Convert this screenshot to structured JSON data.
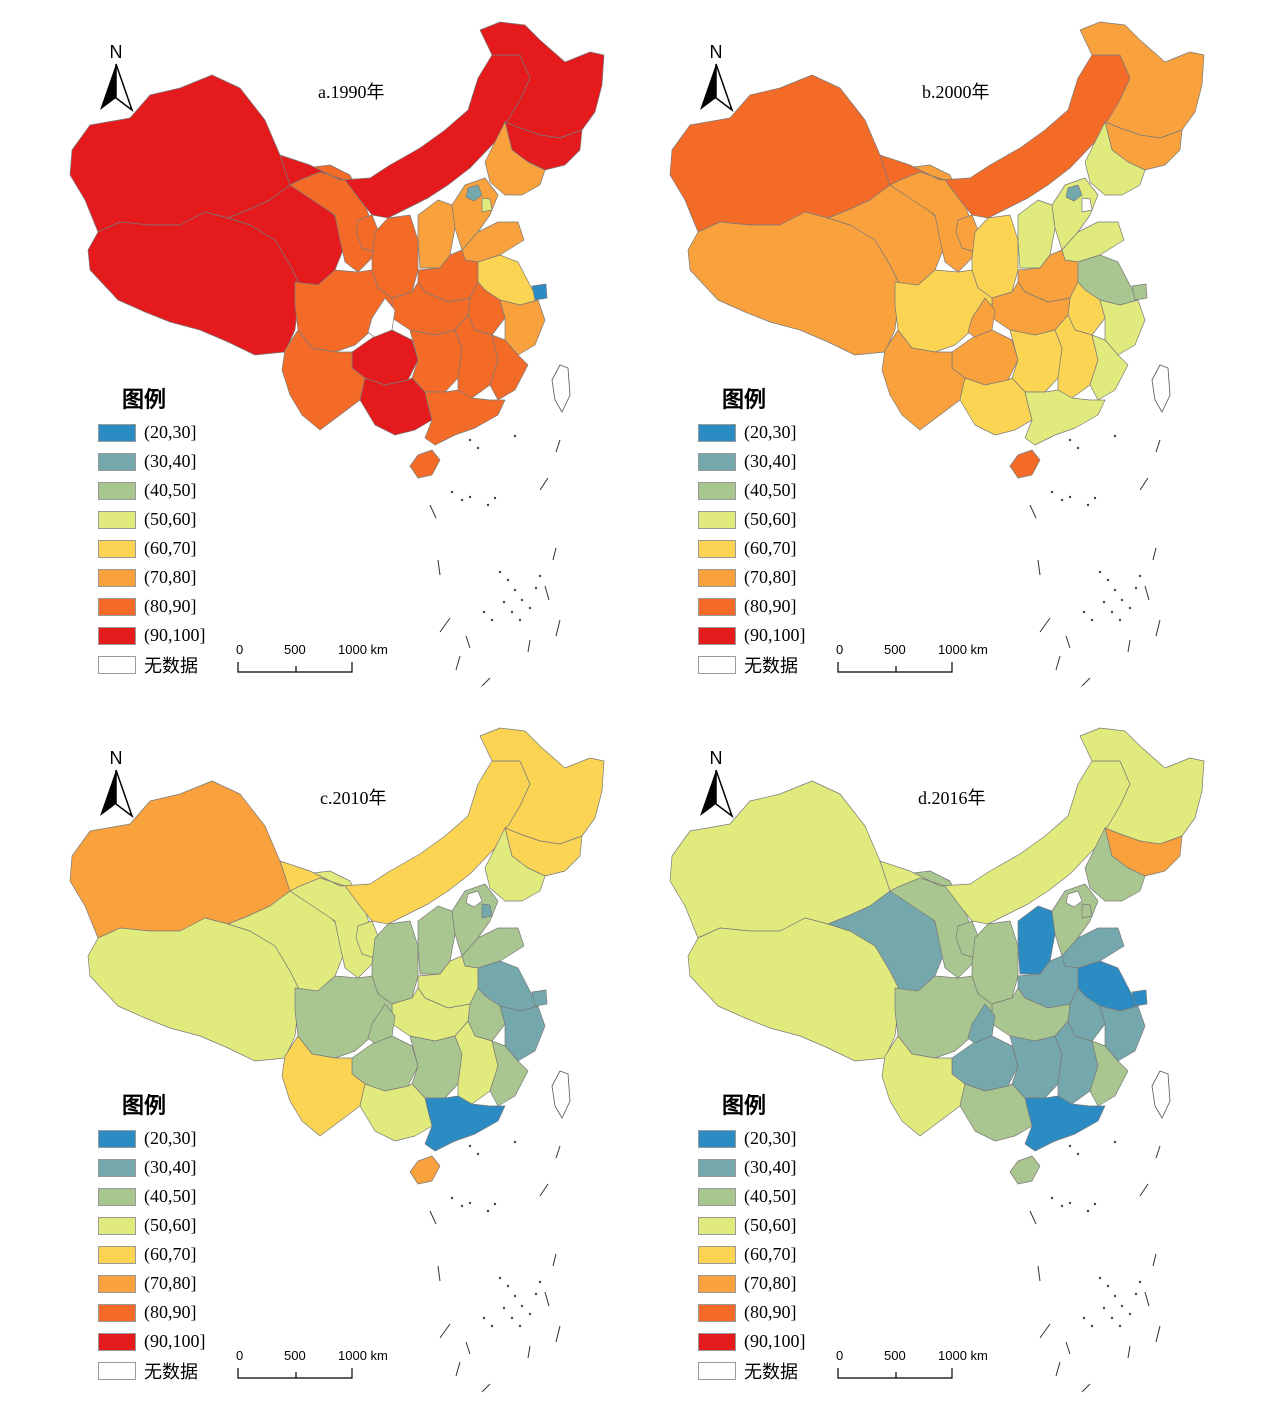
{
  "colors": {
    "c20_30": "#2b8cc4",
    "c30_40": "#75a8ac",
    "c40_50": "#a9c690",
    "c50_60": "#e1ea7c",
    "c60_70": "#fbd453",
    "c70_80": "#f9a13c",
    "c80_90": "#f46b27",
    "c90_100": "#e41a1c",
    "nodata": "#ffffff"
  },
  "legend": {
    "title": "图例",
    "items": [
      {
        "label": "(20,30]",
        "color": "#2b8cc4"
      },
      {
        "label": "(30,40]",
        "color": "#75a8ac"
      },
      {
        "label": "(40,50]",
        "color": "#a9c690"
      },
      {
        "label": "(50,60]",
        "color": "#e1ea7c"
      },
      {
        "label": "(60,70]",
        "color": "#fbd453"
      },
      {
        "label": "(70,80]",
        "color": "#f9a13c"
      },
      {
        "label": "(80,90]",
        "color": "#f46b27"
      },
      {
        "label": "(90,100]",
        "color": "#e41a1c"
      },
      {
        "label": "无数据",
        "color": "#ffffff"
      }
    ]
  },
  "north_label": "N",
  "scale_bar": {
    "ticks": [
      "0",
      "500",
      "1000 km"
    ]
  },
  "panels": [
    {
      "title": "a.1990年",
      "regions": {
        "xinjiang": "c90_100",
        "tibet": "c90_100",
        "qinghai": "c90_100",
        "inner_mongolia": "c90_100",
        "heilongjiang": "c90_100",
        "jilin": "c90_100",
        "liaoning": "c70_80",
        "gansu": "c80_90",
        "ningxia": "c80_90",
        "shaanxi": "c80_90",
        "shanxi": "c70_80",
        "hebei": "c70_80",
        "beijing": "c30_40",
        "tianjin": "c50_60",
        "shandong": "c70_80",
        "henan": "c80_90",
        "jiangsu": "c60_70",
        "shanghai": "c20_30",
        "anhui": "c80_90",
        "hubei": "c80_90",
        "sichuan": "c80_90",
        "chongqing": "nodata",
        "guizhou": "c90_100",
        "yunnan": "c80_90",
        "hunan": "c80_90",
        "jiangxi": "c80_90",
        "zhejiang": "c70_80",
        "fujian": "c80_90",
        "guangdong": "c80_90",
        "guangxi": "c90_100",
        "hainan": "c80_90"
      }
    },
    {
      "title": "b.2000年",
      "regions": {
        "xinjiang": "c80_90",
        "tibet": "c70_80",
        "qinghai": "c70_80",
        "inner_mongolia": "c80_90",
        "heilongjiang": "c70_80",
        "jilin": "c70_80",
        "liaoning": "c50_60",
        "gansu": "c70_80",
        "ningxia": "c70_80",
        "shaanxi": "c60_70",
        "shanxi": "c50_60",
        "hebei": "c50_60",
        "beijing": "c30_40",
        "tianjin": "nodata",
        "shandong": "c50_60",
        "henan": "c70_80",
        "jiangsu": "c40_50",
        "shanghai": "c40_50",
        "anhui": "c60_70",
        "hubei": "c70_80",
        "sichuan": "c60_70",
        "chongqing": "c70_80",
        "guizhou": "c70_80",
        "yunnan": "c70_80",
        "hunan": "c60_70",
        "jiangxi": "c60_70",
        "zhejiang": "c50_60",
        "fujian": "c50_60",
        "guangdong": "c50_60",
        "guangxi": "c60_70",
        "hainan": "c80_90"
      }
    },
    {
      "title": "c.2010年",
      "regions": {
        "xinjiang": "c70_80",
        "tibet": "c50_60",
        "qinghai": "c50_60",
        "inner_mongolia": "c60_70",
        "heilongjiang": "c60_70",
        "jilin": "c60_70",
        "liaoning": "c50_60",
        "gansu": "c50_60",
        "ningxia": "c50_60",
        "shaanxi": "c40_50",
        "shanxi": "c40_50",
        "hebei": "c40_50",
        "beijing": "nodata",
        "tianjin": "c30_40",
        "shandong": "c40_50",
        "henan": "c50_60",
        "jiangsu": "c30_40",
        "shanghai": "c30_40",
        "anhui": "c40_50",
        "hubei": "c50_60",
        "sichuan": "c40_50",
        "chongqing": "c40_50",
        "guizhou": "c40_50",
        "yunnan": "c60_70",
        "hunan": "c40_50",
        "jiangxi": "c50_60",
        "zhejiang": "c30_40",
        "fujian": "c40_50",
        "guangdong": "c20_30",
        "guangxi": "c50_60",
        "hainan": "c70_80"
      }
    },
    {
      "title": "d.2016年",
      "regions": {
        "xinjiang": "c50_60",
        "tibet": "c50_60",
        "qinghai": "c30_40",
        "inner_mongolia": "c50_60",
        "heilongjiang": "c50_60",
        "jilin": "c70_80",
        "liaoning": "c40_50",
        "gansu": "c40_50",
        "ningxia": "c40_50",
        "shaanxi": "c40_50",
        "shanxi": "c20_30",
        "hebei": "c40_50",
        "beijing": "nodata",
        "tianjin": "c40_50",
        "shandong": "c30_40",
        "henan": "c30_40",
        "jiangsu": "c20_30",
        "shanghai": "c20_30",
        "anhui": "c30_40",
        "hubei": "c40_50",
        "sichuan": "c40_50",
        "chongqing": "c30_40",
        "guizhou": "c30_40",
        "yunnan": "c50_60",
        "hunan": "c30_40",
        "jiangxi": "c30_40",
        "zhejiang": "c30_40",
        "fujian": "c40_50",
        "guangdong": "c20_30",
        "guangxi": "c40_50",
        "hainan": "c40_50"
      }
    }
  ]
}
